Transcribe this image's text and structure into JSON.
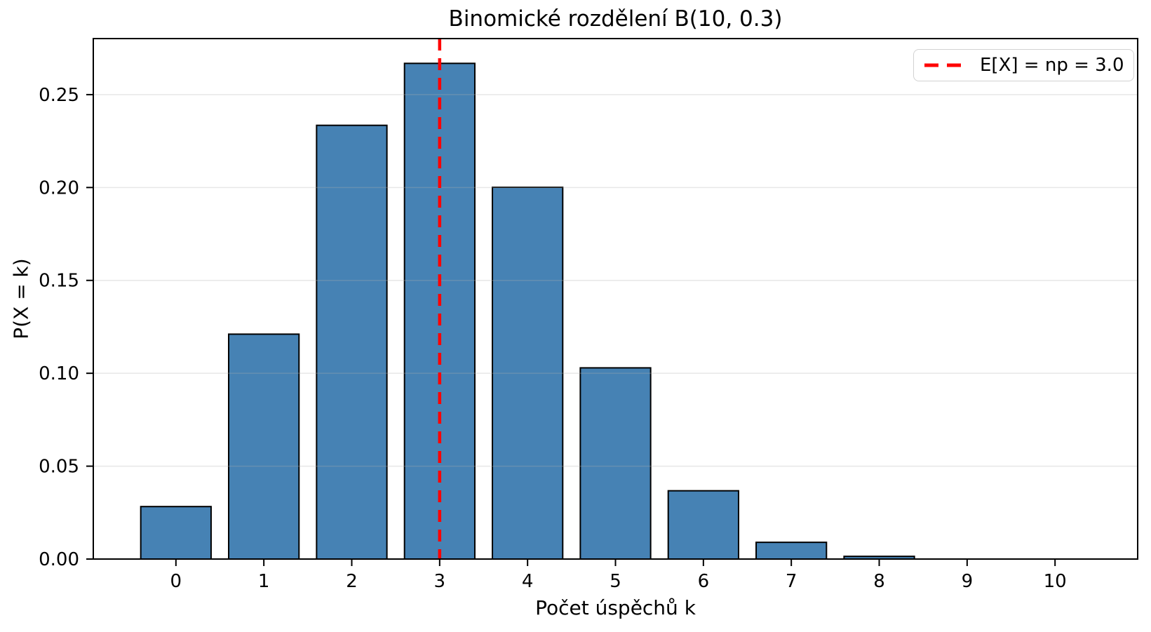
{
  "figure": {
    "background_color": "#ffffff"
  },
  "chart_data": {
    "type": "bar",
    "title": "Binomické rozdělení B(10, 0.3)",
    "xlabel": "Počet úspěchů k",
    "ylabel": "P(X = k)",
    "categories": [
      0,
      1,
      2,
      3,
      4,
      5,
      6,
      7,
      8,
      9,
      10
    ],
    "values": [
      0.0282475,
      0.1210608,
      0.2334744,
      0.2668279,
      0.2001209,
      0.1029193,
      0.0367569,
      0.0090017,
      0.0014467,
      0.0001378,
      5.9e-06
    ],
    "bar_width": 0.8,
    "bar_color": "#4682B4",
    "bar_edge_color": "#000000",
    "xlim": [
      -0.94,
      10.94
    ],
    "ylim": [
      0,
      0.28017
    ],
    "xticks": [
      0,
      1,
      2,
      3,
      4,
      5,
      6,
      7,
      8,
      9,
      10
    ],
    "yticks": [
      0,
      0.05,
      0.1,
      0.15,
      0.2,
      0.25
    ],
    "ytick_labels": [
      "0.00",
      "0.05",
      "0.10",
      "0.15",
      "0.20",
      "0.25"
    ],
    "grid": true,
    "grid_axis": "y",
    "grid_color": "#b0b0b0",
    "mean_line": {
      "x": 3.0,
      "color": "#ff0000",
      "style": "dashed",
      "label": "E[X] = np = 3.0"
    },
    "legend": {
      "position": "upper right",
      "entries": [
        {
          "label": "E[X] = np = 3.0",
          "color": "#ff0000",
          "style": "dashed"
        }
      ]
    }
  }
}
